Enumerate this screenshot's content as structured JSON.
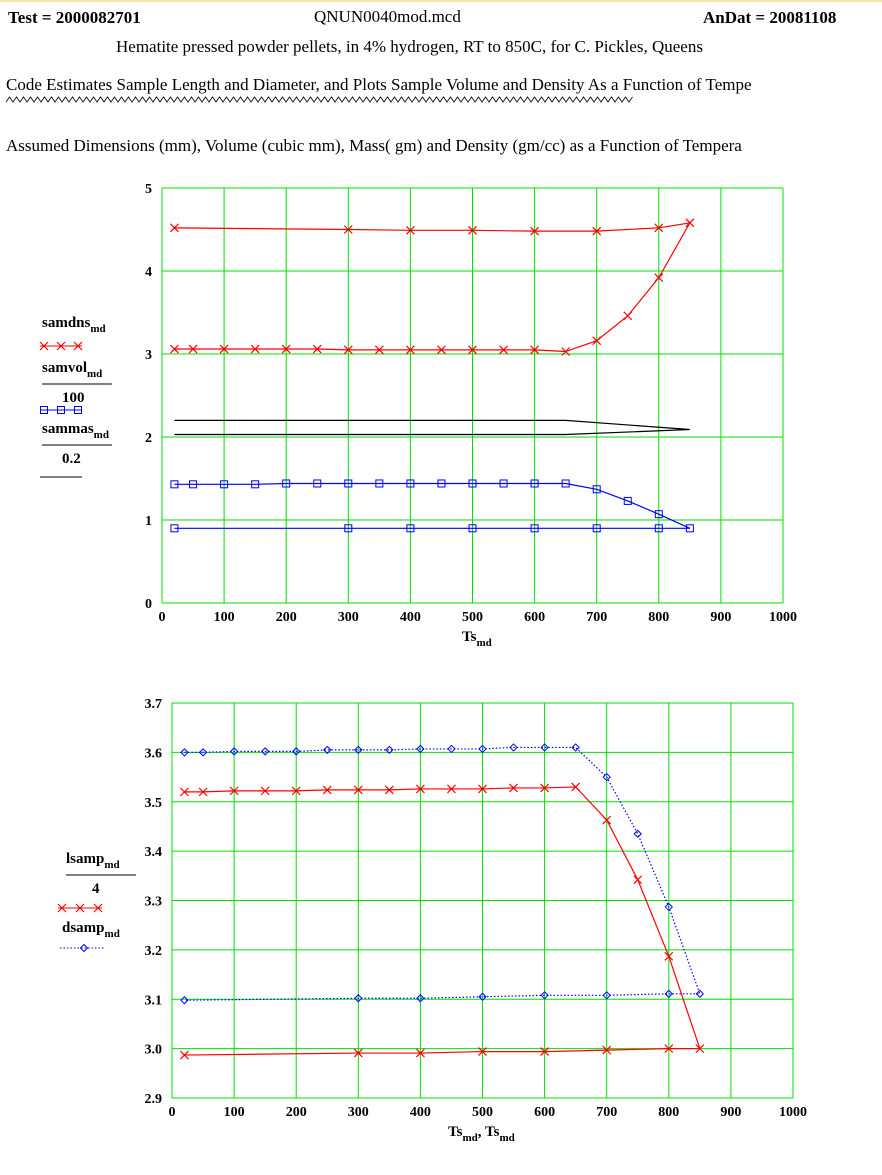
{
  "header": {
    "test": "Test = 2000082701",
    "file": "QNUN0040mod.mcd",
    "andat": "AnDat = 20081108",
    "subtitle": "Hematite pressed powder pellets, in 4% hydrogen,  RT to 850C,  for C. Pickles, Queens",
    "code_note": "Code Estimates Sample Length and Diameter, and Plots Sample Volume and Density As a Function of Tempe",
    "assumed": "Assumed  Dimensions (mm), Volume (cubic mm), Mass( gm)  and Density (gm/cc)  as a Function of Tempera"
  },
  "colors": {
    "grid": "#00e000",
    "red": "#ff0000",
    "blue": "#0000ff",
    "black": "#000000"
  },
  "chart_data": [
    {
      "type": "line",
      "xlabel": "Ts",
      "xlabel_sub": "md",
      "xlim": [
        0,
        1000
      ],
      "ylim": [
        0,
        5
      ],
      "xticks": [
        0,
        100,
        200,
        300,
        400,
        500,
        600,
        700,
        800,
        900,
        1000
      ],
      "yticks": [
        0,
        1,
        2,
        3,
        4,
        5
      ],
      "grid": true,
      "legend": [
        {
          "text": "samdns",
          "sub": "md",
          "marker": "x",
          "color": "#ff0000"
        },
        {
          "text": "samvol",
          "sub": "md",
          "denominator": "100",
          "marker": "square",
          "color": "#0000ff"
        },
        {
          "text": "sammas",
          "sub": "md",
          "denominator": "0.2",
          "marker": "none",
          "color": "#000000"
        }
      ],
      "series": [
        {
          "name": "samdns",
          "marker": "x",
          "color": "#ff0000",
          "x": [
            20,
            300,
            400,
            500,
            600,
            700,
            800,
            850,
            800,
            750,
            700,
            650,
            600,
            550,
            500,
            450,
            400,
            350,
            300,
            250,
            200,
            150,
            100,
            50,
            20
          ],
          "y": [
            4.52,
            4.5,
            4.49,
            4.49,
            4.48,
            4.48,
            4.52,
            4.58,
            3.92,
            3.46,
            3.16,
            3.03,
            3.05,
            3.05,
            3.05,
            3.05,
            3.05,
            3.05,
            3.05,
            3.06,
            3.06,
            3.06,
            3.06,
            3.06,
            3.06
          ]
        },
        {
          "name": "samvol/100",
          "marker": "square",
          "color": "#0000ff",
          "x": [
            20,
            50,
            100,
            150,
            200,
            250,
            300,
            350,
            400,
            450,
            500,
            550,
            600,
            650,
            700,
            750,
            800,
            850,
            800,
            700,
            600,
            500,
            400,
            300,
            20
          ],
          "y": [
            1.43,
            1.43,
            1.43,
            1.43,
            1.44,
            1.44,
            1.44,
            1.44,
            1.44,
            1.44,
            1.44,
            1.44,
            1.44,
            1.44,
            1.37,
            1.23,
            1.07,
            0.9,
            0.9,
            0.9,
            0.9,
            0.9,
            0.9,
            0.9,
            0.9
          ]
        },
        {
          "name": "sammas/0.2",
          "marker": "none",
          "color": "#000000",
          "x": [
            20,
            650,
            850,
            650,
            20
          ],
          "y": [
            2.2,
            2.2,
            2.09,
            2.03,
            2.03
          ]
        }
      ]
    },
    {
      "type": "line",
      "xlabel": "Ts",
      "xlabel_sub": "md",
      "xlabel2": "Ts",
      "xlabel2_sub": "md",
      "xlim": [
        0,
        1000
      ],
      "ylim": [
        2.9,
        3.7
      ],
      "xticks": [
        0,
        100,
        200,
        300,
        400,
        500,
        600,
        700,
        800,
        900,
        1000
      ],
      "yticks": [
        2.9,
        3.0,
        3.1,
        3.2,
        3.3,
        3.4,
        3.5,
        3.6,
        3.7
      ],
      "grid": true,
      "legend": [
        {
          "text": "lsamp",
          "sub": "md",
          "denominator": "4",
          "marker": "x",
          "color": "#ff0000"
        },
        {
          "text": "dsamp",
          "sub": "md",
          "marker": "diamond",
          "color": "#0000ff"
        }
      ],
      "series": [
        {
          "name": "lsamp/4",
          "marker": "x",
          "line": "solid",
          "color": "#ff0000",
          "x": [
            20,
            50,
            100,
            150,
            200,
            250,
            300,
            350,
            400,
            450,
            500,
            550,
            600,
            650,
            700,
            750,
            800,
            850,
            800,
            700,
            600,
            500,
            400,
            300,
            20
          ],
          "y": [
            3.52,
            3.52,
            3.522,
            3.522,
            3.522,
            3.524,
            3.524,
            3.524,
            3.526,
            3.526,
            3.526,
            3.528,
            3.528,
            3.53,
            3.463,
            3.342,
            3.187,
            3.0,
            3.0,
            2.997,
            2.994,
            2.994,
            2.991,
            2.991,
            2.987
          ]
        },
        {
          "name": "dsamp",
          "marker": "diamond",
          "line": "dotted",
          "color": "#0000ff",
          "x": [
            20,
            50,
            100,
            150,
            200,
            250,
            300,
            350,
            400,
            450,
            500,
            550,
            600,
            650,
            700,
            750,
            800,
            850,
            800,
            700,
            600,
            500,
            400,
            300,
            20
          ],
          "y": [
            3.6,
            3.6,
            3.602,
            3.602,
            3.602,
            3.605,
            3.605,
            3.605,
            3.607,
            3.607,
            3.607,
            3.61,
            3.61,
            3.61,
            3.55,
            3.435,
            3.287,
            3.111,
            3.111,
            3.108,
            3.108,
            3.105,
            3.102,
            3.102,
            3.098
          ]
        }
      ]
    }
  ]
}
